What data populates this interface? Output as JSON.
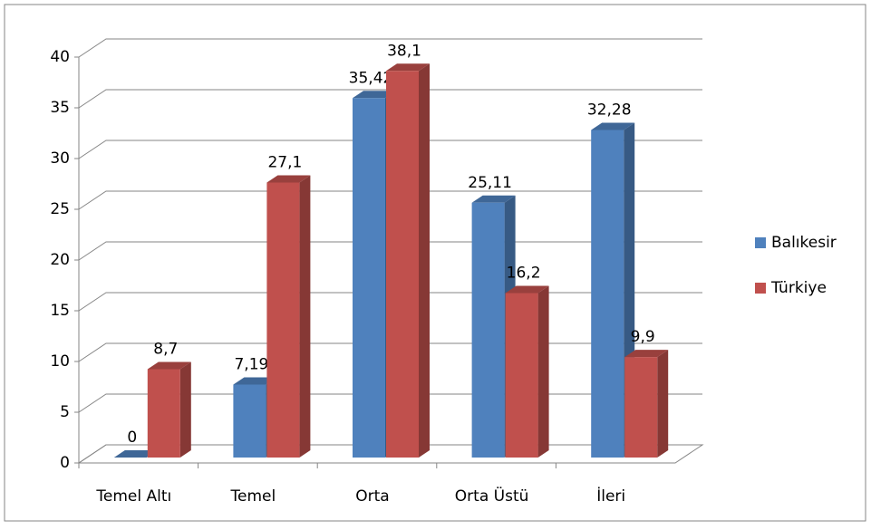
{
  "chart_data": {
    "type": "bar3d",
    "categories": [
      "Temel Altı",
      "Temel",
      "Orta",
      "Orta Üstü",
      "İleri"
    ],
    "series": [
      {
        "name": "Balıkesir",
        "color": "#4f81bd",
        "values": [
          0,
          7.19,
          35.42,
          25.11,
          32.28
        ],
        "value_labels": [
          "0",
          "7,19",
          "35,42",
          "25,11",
          "32,28"
        ]
      },
      {
        "name": "Türkiye",
        "color": "#c0504d",
        "values": [
          8.7,
          27.1,
          38.1,
          16.2,
          9.9
        ],
        "value_labels": [
          "8,7",
          "27,1",
          "38,1",
          "16,2",
          "9,9"
        ]
      }
    ],
    "ylim": [
      0,
      40
    ],
    "yticks": [
      0,
      5,
      10,
      15,
      20,
      25,
      30,
      35,
      40
    ],
    "grid": true,
    "legend": "right"
  }
}
